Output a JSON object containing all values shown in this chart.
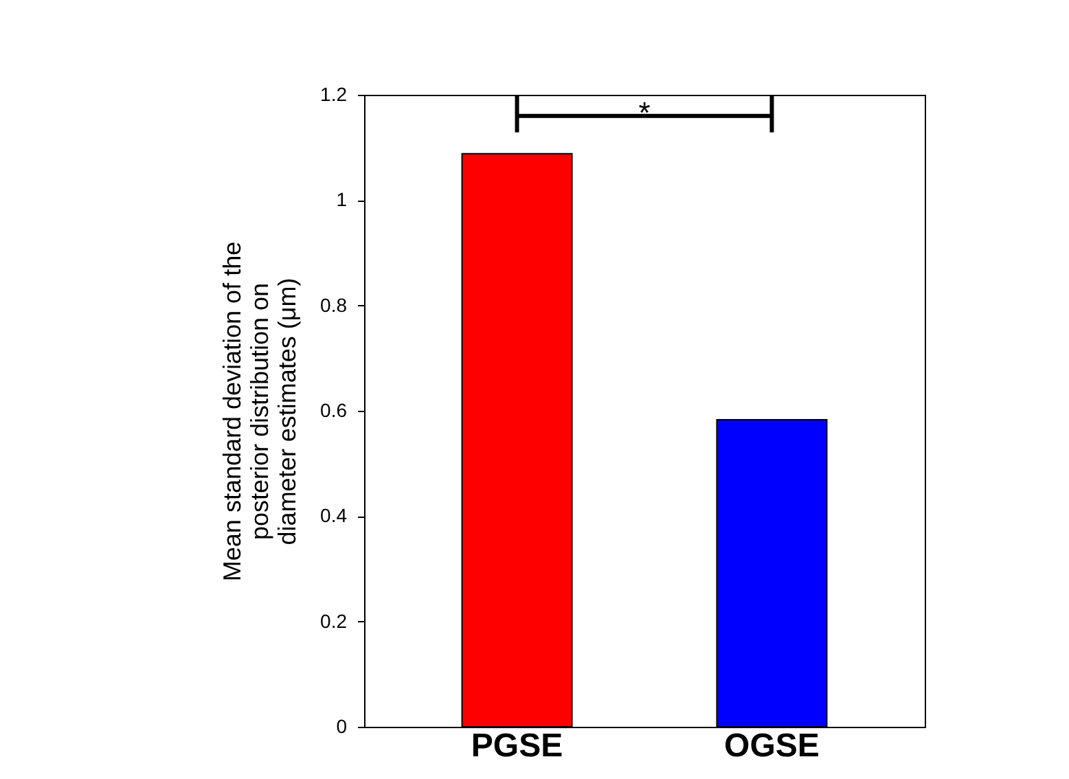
{
  "chart_data": {
    "type": "bar",
    "ylabel": "Mean standard deviation of the\nposterior distribution on\ndiameter estimates (μm)",
    "categories": [
      "PGSE",
      "OGSE"
    ],
    "values": [
      1.088,
      0.583
    ],
    "colors": [
      "#ff0000",
      "#0000ff"
    ],
    "ylim": [
      0,
      1.2
    ],
    "yticks": [
      0,
      0.2,
      0.4,
      0.6,
      0.8,
      1,
      1.2
    ],
    "grid": false,
    "annotations": [
      "*"
    ]
  }
}
